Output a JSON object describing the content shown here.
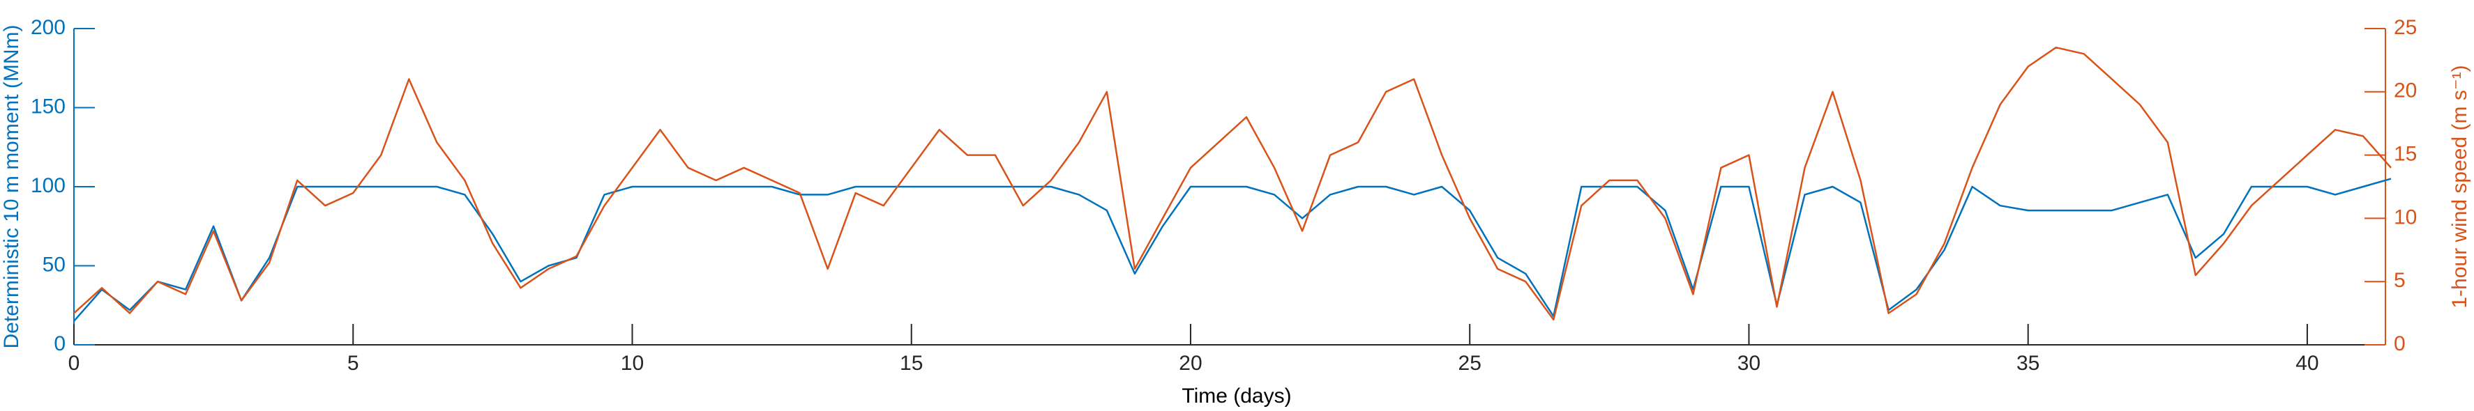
{
  "chart_data": {
    "type": "line",
    "xlabel": "Time (days)",
    "ylabel": "Deterministic 10 m moment (MNm)",
    "y2label": "1-hour wind speed (m s⁻¹)",
    "x": [
      0,
      0.5,
      1,
      1.5,
      2,
      2.5,
      3,
      3.5,
      4,
      4.5,
      5,
      5.5,
      6,
      6.5,
      7,
      7.5,
      8,
      8.5,
      9,
      9.5,
      10,
      10.5,
      11,
      11.5,
      12,
      12.5,
      13,
      13.5,
      14,
      14.5,
      15,
      15.5,
      16,
      16.5,
      17,
      17.5,
      18,
      18.5,
      19,
      19.5,
      20,
      20.5,
      21,
      21.5,
      22,
      22.5,
      23,
      23.5,
      24,
      24.5,
      25,
      25.5,
      26,
      26.5,
      27,
      27.5,
      28,
      28.5,
      29,
      29.5,
      30,
      30.5,
      31,
      31.5,
      32,
      32.5,
      33,
      33.5,
      34,
      34.5,
      35,
      35.5,
      36,
      36.5,
      37,
      37.5,
      38,
      38.5,
      39,
      39.5,
      40,
      40.5,
      41,
      41.5
    ],
    "series": [
      {
        "name": "Deterministic 10 m moment",
        "color": "#0072BD",
        "axis": "y",
        "values": [
          15,
          35,
          22,
          40,
          35,
          75,
          28,
          55,
          100,
          100,
          100,
          100,
          100,
          100,
          95,
          70,
          40,
          50,
          55,
          95,
          100,
          100,
          100,
          100,
          100,
          100,
          95,
          95,
          100,
          100,
          100,
          100,
          100,
          100,
          100,
          100,
          95,
          85,
          45,
          75,
          100,
          100,
          100,
          95,
          80,
          95,
          100,
          100,
          95,
          100,
          85,
          55,
          45,
          18,
          100,
          100,
          100,
          85,
          35,
          100,
          100,
          25,
          95,
          100,
          90,
          22,
          35,
          60,
          100,
          88,
          85,
          85,
          85,
          85,
          90,
          95,
          55,
          70,
          100,
          100,
          100,
          95,
          100,
          105
        ]
      },
      {
        "name": "1-hour wind speed",
        "color": "#D95319",
        "axis": "y2",
        "values": [
          2.5,
          4.5,
          2.5,
          5,
          4,
          9,
          3.5,
          6.5,
          13,
          11,
          12,
          15,
          21,
          16,
          13,
          8,
          4.5,
          6,
          7,
          11,
          14,
          17,
          14,
          13,
          14,
          13,
          12,
          6,
          12,
          11,
          14,
          17,
          15,
          15,
          11,
          13,
          16,
          20,
          6,
          10,
          14,
          16,
          18,
          14,
          9,
          15,
          16,
          20,
          21,
          15,
          10,
          6,
          5,
          2,
          11,
          13,
          13,
          10,
          4,
          14,
          15,
          3,
          14,
          20,
          13,
          2.5,
          4,
          8,
          14,
          19,
          22,
          23.5,
          23,
          21,
          19,
          16,
          5.5,
          8,
          11,
          13,
          15,
          17,
          16.5,
          14
        ]
      }
    ],
    "xlim": [
      0,
      41.4
    ],
    "xticks": [
      0,
      5,
      10,
      15,
      20,
      25,
      30,
      35,
      40
    ],
    "ylim": [
      0,
      200
    ],
    "yticks": [
      0,
      50,
      100,
      150,
      200
    ],
    "y2lim": [
      0,
      25
    ],
    "y2ticks": [
      0,
      5,
      10,
      15,
      20,
      25
    ]
  }
}
